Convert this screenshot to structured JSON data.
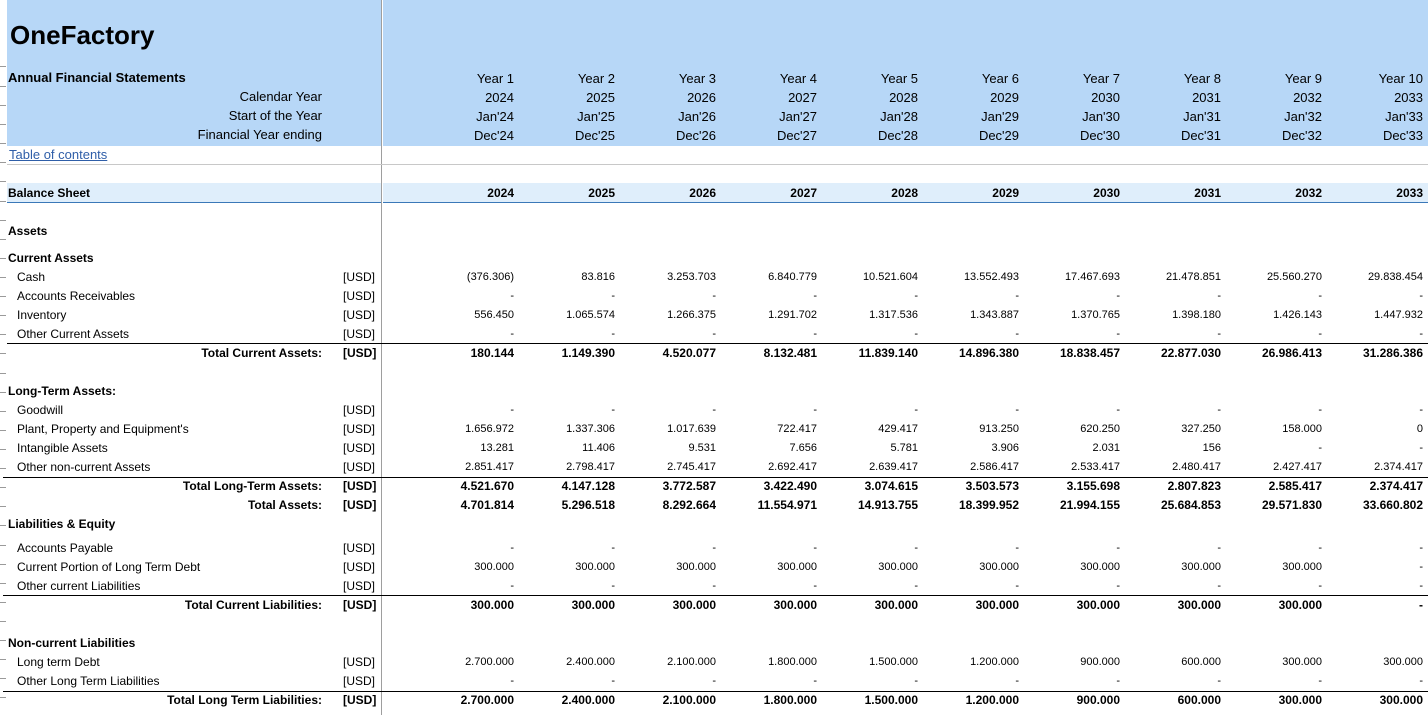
{
  "app_title": "OneFactory",
  "sheet_title": "Annual Financial Statements",
  "header_labels": {
    "calendar_year": "Calendar Year",
    "start_of_year": "Start of the Year",
    "fy_ending": "Financial Year ending"
  },
  "toc_link": "Table of contents",
  "periods": [
    {
      "year": "Year 1",
      "cal": "2024",
      "start": "Jan'24",
      "end": "Dec'24"
    },
    {
      "year": "Year 2",
      "cal": "2025",
      "start": "Jan'25",
      "end": "Dec'25"
    },
    {
      "year": "Year 3",
      "cal": "2026",
      "start": "Jan'26",
      "end": "Dec'26"
    },
    {
      "year": "Year 4",
      "cal": "2027",
      "start": "Jan'27",
      "end": "Dec'27"
    },
    {
      "year": "Year 5",
      "cal": "2028",
      "start": "Jan'28",
      "end": "Dec'28"
    },
    {
      "year": "Year 6",
      "cal": "2029",
      "start": "Jan'29",
      "end": "Dec'29"
    },
    {
      "year": "Year 7",
      "cal": "2030",
      "start": "Jan'30",
      "end": "Dec'30"
    },
    {
      "year": "Year 8",
      "cal": "2031",
      "start": "Jan'31",
      "end": "Dec'31"
    },
    {
      "year": "Year 9",
      "cal": "2032",
      "start": "Jan'32",
      "end": "Dec'32"
    },
    {
      "year": "Year 10",
      "cal": "2033",
      "start": "Jan'33",
      "end": "Dec'33"
    }
  ],
  "balance_sheet": {
    "title": "Balance Sheet",
    "years": [
      "2024",
      "2025",
      "2026",
      "2027",
      "2028",
      "2029",
      "2030",
      "2031",
      "2032",
      "2033"
    ],
    "rows": [
      {
        "type": "section",
        "label": "Assets"
      },
      {
        "type": "section",
        "label": "Current Assets"
      },
      {
        "type": "item",
        "label": "Cash",
        "unit": "[USD]",
        "values": [
          "(376.306)",
          "83.816",
          "3.253.703",
          "6.840.779",
          "10.521.604",
          "13.552.493",
          "17.467.693",
          "21.478.851",
          "25.560.270",
          "29.838.454"
        ]
      },
      {
        "type": "item",
        "label": "Accounts Receivables",
        "unit": "[USD]",
        "values": [
          "-",
          "-",
          "-",
          "-",
          "-",
          "-",
          "-",
          "-",
          "-",
          "-"
        ]
      },
      {
        "type": "item",
        "label": "Inventory",
        "unit": "[USD]",
        "values": [
          "556.450",
          "1.065.574",
          "1.266.375",
          "1.291.702",
          "1.317.536",
          "1.343.887",
          "1.370.765",
          "1.398.180",
          "1.426.143",
          "1.447.932"
        ]
      },
      {
        "type": "item",
        "label": "Other Current Assets",
        "unit": "[USD]",
        "values": [
          "-",
          "-",
          "-",
          "-",
          "-",
          "-",
          "-",
          "-",
          "-",
          "-"
        ]
      },
      {
        "type": "total",
        "label": "Total Current Assets:",
        "unit": "[USD]",
        "values": [
          "180.144",
          "1.149.390",
          "4.520.077",
          "8.132.481",
          "11.839.140",
          "14.896.380",
          "18.838.457",
          "22.877.030",
          "26.986.413",
          "31.286.386"
        ]
      },
      {
        "type": "section",
        "label": "Long-Term Assets:"
      },
      {
        "type": "item",
        "label": "Goodwill",
        "unit": "[USD]",
        "values": [
          "-",
          "-",
          "-",
          "-",
          "-",
          "-",
          "-",
          "-",
          "-",
          "-"
        ]
      },
      {
        "type": "item",
        "label": "Plant, Property and Equipment's",
        "unit": "[USD]",
        "values": [
          "1.656.972",
          "1.337.306",
          "1.017.639",
          "722.417",
          "429.417",
          "913.250",
          "620.250",
          "327.250",
          "158.000",
          "0"
        ]
      },
      {
        "type": "item",
        "label": "Intangible Assets",
        "unit": "[USD]",
        "values": [
          "13.281",
          "11.406",
          "9.531",
          "7.656",
          "5.781",
          "3.906",
          "2.031",
          "156",
          "-",
          "-"
        ]
      },
      {
        "type": "item",
        "label": "Other non-current Assets",
        "unit": "[USD]",
        "values": [
          "2.851.417",
          "2.798.417",
          "2.745.417",
          "2.692.417",
          "2.639.417",
          "2.586.417",
          "2.533.417",
          "2.480.417",
          "2.427.417",
          "2.374.417"
        ]
      },
      {
        "type": "total",
        "label": "Total Long-Term Assets:",
        "unit": "[USD]",
        "values": [
          "4.521.670",
          "4.147.128",
          "3.772.587",
          "3.422.490",
          "3.074.615",
          "3.503.573",
          "3.155.698",
          "2.807.823",
          "2.585.417",
          "2.374.417"
        ]
      },
      {
        "type": "total",
        "label": "Total Assets:",
        "unit": "[USD]",
        "values": [
          "4.701.814",
          "5.296.518",
          "8.292.664",
          "11.554.971",
          "14.913.755",
          "18.399.952",
          "21.994.155",
          "25.684.853",
          "29.571.830",
          "33.660.802"
        ]
      },
      {
        "type": "section",
        "label": "Liabilities & Equity"
      },
      {
        "type": "item",
        "label": "Accounts Payable",
        "unit": "[USD]",
        "values": [
          "-",
          "-",
          "-",
          "-",
          "-",
          "-",
          "-",
          "-",
          "-",
          "-"
        ]
      },
      {
        "type": "item",
        "label": "Current Portion of Long Term Debt",
        "unit": "[USD]",
        "values": [
          "300.000",
          "300.000",
          "300.000",
          "300.000",
          "300.000",
          "300.000",
          "300.000",
          "300.000",
          "300.000",
          "-"
        ]
      },
      {
        "type": "item",
        "label": "Other current Liabilities",
        "unit": "[USD]",
        "values": [
          "-",
          "-",
          "-",
          "-",
          "-",
          "-",
          "-",
          "-",
          "-",
          "-"
        ]
      },
      {
        "type": "total",
        "label": "Total Current Liabilities:",
        "unit": "[USD]",
        "values": [
          "300.000",
          "300.000",
          "300.000",
          "300.000",
          "300.000",
          "300.000",
          "300.000",
          "300.000",
          "300.000",
          "-"
        ]
      },
      {
        "type": "section",
        "label": "Non-current Liabilities"
      },
      {
        "type": "item",
        "label": "Long term Debt",
        "unit": "[USD]",
        "values": [
          "2.700.000",
          "2.400.000",
          "2.100.000",
          "1.800.000",
          "1.500.000",
          "1.200.000",
          "900.000",
          "600.000",
          "300.000",
          "300.000"
        ]
      },
      {
        "type": "item",
        "label": "Other Long Term Liabilities",
        "unit": "[USD]",
        "values": [
          "-",
          "-",
          "-",
          "-",
          "-",
          "-",
          "-",
          "-",
          "-",
          "-"
        ]
      },
      {
        "type": "total",
        "label": "Total Long Term Liabilities:",
        "unit": "[USD]",
        "values": [
          "2.700.000",
          "2.400.000",
          "2.100.000",
          "1.800.000",
          "1.500.000",
          "1.200.000",
          "900.000",
          "600.000",
          "300.000",
          "300.000"
        ]
      }
    ]
  }
}
